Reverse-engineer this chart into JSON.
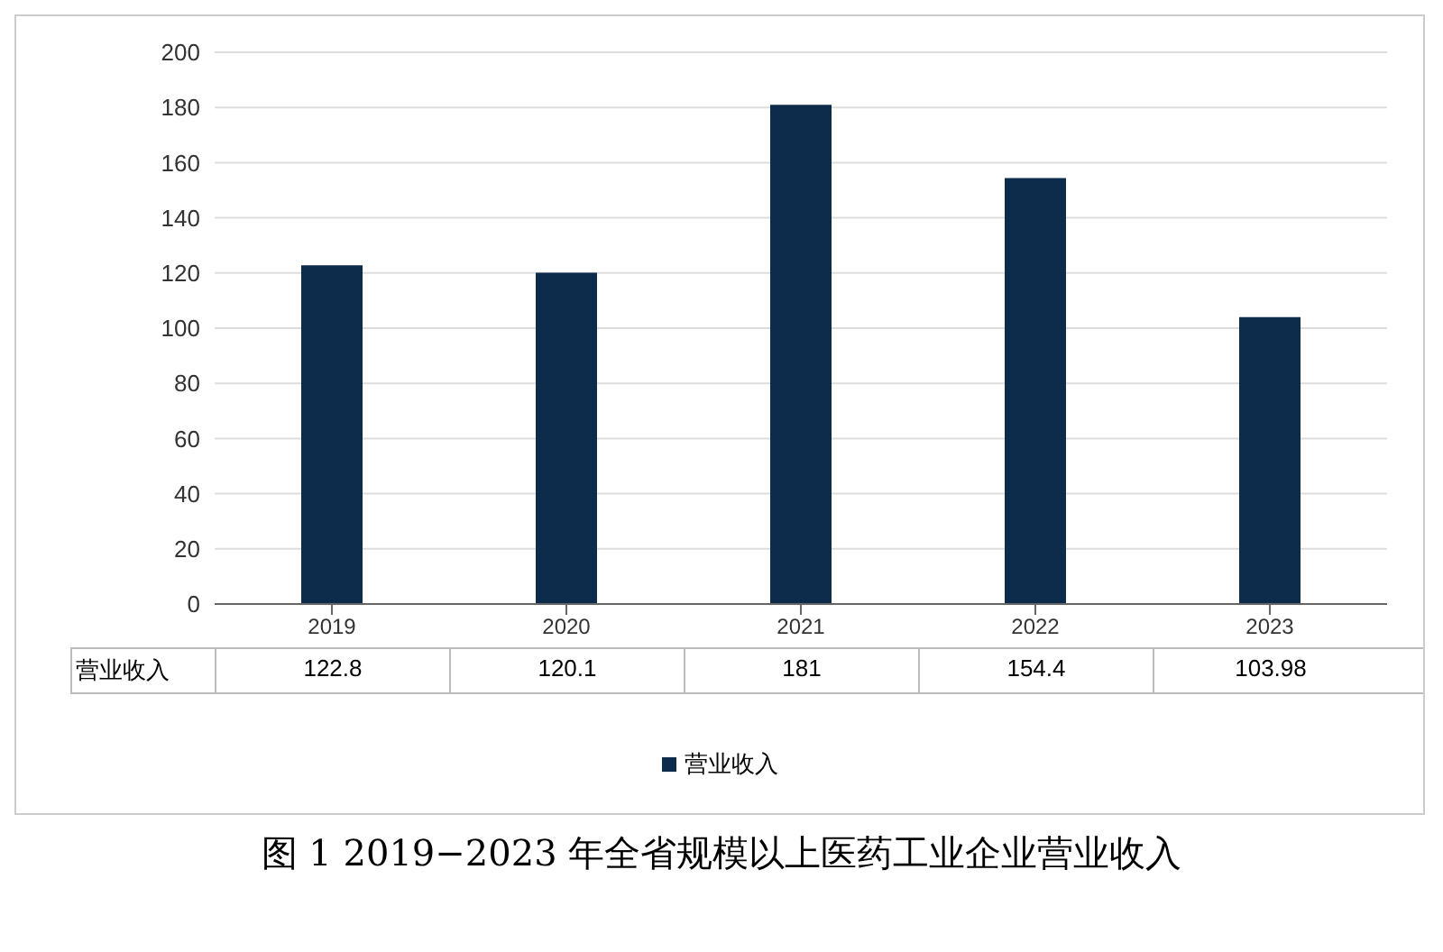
{
  "chart_data": {
    "type": "bar",
    "title": "图 1 2019−2023 年全省规模以上医药工业企业营业收入",
    "categories": [
      "2019",
      "2020",
      "2021",
      "2022",
      "2023"
    ],
    "series": [
      {
        "name": "营业收入",
        "color": "#0d2b4a",
        "values": [
          122.8,
          120.1,
          181,
          154.4,
          103.98
        ]
      }
    ],
    "ylim": [
      0,
      200
    ],
    "yticks": [
      0,
      20,
      40,
      60,
      80,
      100,
      120,
      140,
      160,
      180,
      200
    ],
    "grid": "y",
    "legend": "bottom",
    "data_labels": true
  }
}
